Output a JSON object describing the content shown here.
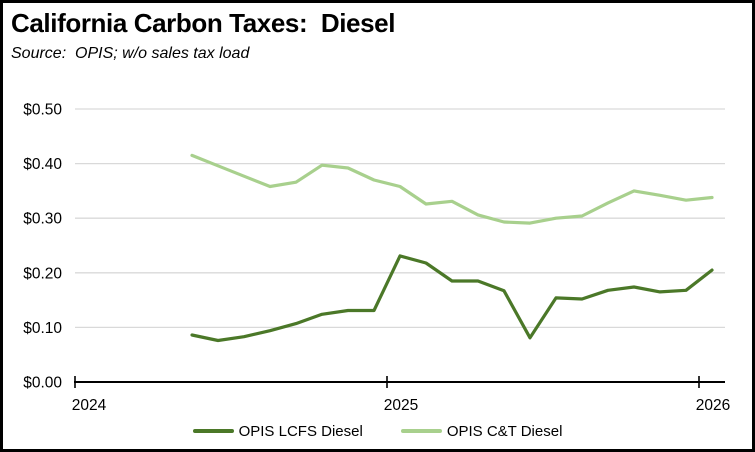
{
  "header": {
    "title": "California Carbon Taxes:  Diesel",
    "source": "Source:  OPIS; w/o sales tax load"
  },
  "colors": {
    "lcfs_line": "#4b7828",
    "ct_line": "#a8d08d",
    "gridline": "#d9d9d9",
    "axis": "#000000",
    "text": "#000000",
    "background": "#ffffff",
    "frame_border": "#000000"
  },
  "chart_data": {
    "type": "line",
    "title": "California Carbon Taxes:  Diesel",
    "subtitle": "Source:  OPIS; w/o sales tax load",
    "x": [
      "2024-05",
      "2024-06",
      "2024-07",
      "2024-08",
      "2024-09",
      "2024-10",
      "2024-11",
      "2024-12",
      "2025-01",
      "2025-02",
      "2025-03",
      "2025-04",
      "2025-05",
      "2025-06",
      "2025-07",
      "2025-08",
      "2025-09",
      "2025-10",
      "2025-11",
      "2025-12",
      "2026-01"
    ],
    "series": [
      {
        "name": "OPIS LCFS Diesel",
        "color": "#4b7828",
        "values": [
          0.086,
          0.076,
          0.083,
          0.094,
          0.107,
          0.124,
          0.131,
          0.131,
          0.231,
          0.218,
          0.185,
          0.185,
          0.167,
          0.081,
          0.154,
          0.152,
          0.168,
          0.174,
          0.165,
          0.168,
          0.205
        ]
      },
      {
        "name": "OPIS C&T Diesel",
        "color": "#a8d08d",
        "values": [
          0.415,
          0.396,
          0.377,
          0.358,
          0.366,
          0.397,
          0.392,
          0.37,
          0.358,
          0.326,
          0.331,
          0.306,
          0.293,
          0.291,
          0.3,
          0.304,
          0.328,
          0.35,
          0.342,
          0.333,
          0.338
        ]
      }
    ],
    "xlabel": "",
    "ylabel": "",
    "ylim": [
      0,
      0.5
    ],
    "y_ticks": [
      "$0.00",
      "$0.10",
      "$0.20",
      "$0.30",
      "$0.40",
      "$0.50"
    ],
    "x_ticks": [
      {
        "label": "2024",
        "year": 2024
      },
      {
        "label": "2025",
        "year": 2025
      },
      {
        "label": "2026",
        "year": 2026
      }
    ],
    "x_axis_span_months": [
      "2024-01",
      "2026-02"
    ],
    "grid": true,
    "legend_position": "bottom"
  }
}
